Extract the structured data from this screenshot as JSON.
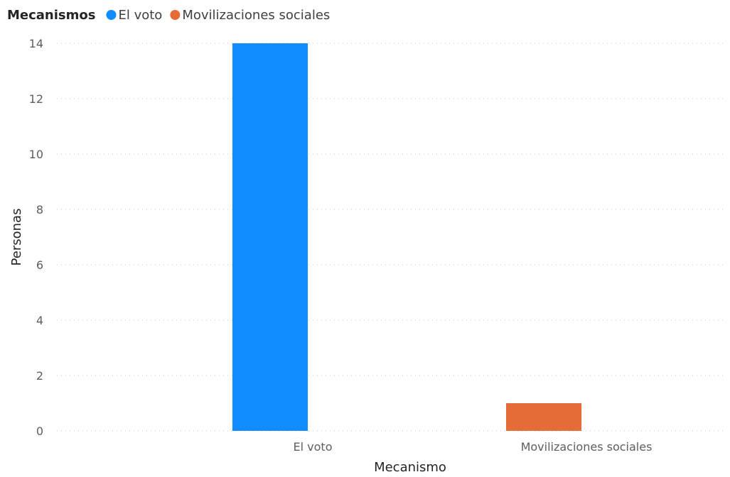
{
  "chart_data": {
    "type": "bar",
    "legend": {
      "title": "Mecanismos",
      "position": "top-left",
      "entries": [
        {
          "label": "El voto",
          "color": "#118dff"
        },
        {
          "label": "Movilizaciones sociales",
          "color": "#e66c37"
        }
      ]
    },
    "categories": [
      "El voto",
      "Movilizaciones sociales"
    ],
    "series": [
      {
        "name": "El voto",
        "color": "#118dff",
        "values": [
          14,
          null
        ]
      },
      {
        "name": "Movilizaciones sociales",
        "color": "#e66c37",
        "values": [
          null,
          1
        ]
      }
    ],
    "xlabel": "Mecanismo",
    "ylabel": "Personas",
    "ylim": [
      0,
      14
    ],
    "yticks": [
      0,
      2,
      4,
      6,
      8,
      10,
      12,
      14
    ],
    "grid": true
  }
}
